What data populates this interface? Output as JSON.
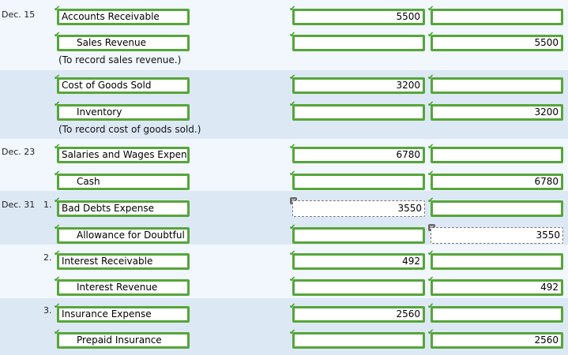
{
  "icons": {
    "check": "✔",
    "x": "✕"
  },
  "rows": {
    "r0": {
      "date": "Dec. 15",
      "account": "Accounts Receivable",
      "debit": "5500",
      "credit": ""
    },
    "r1": {
      "account": "Sales Revenue",
      "debit": "",
      "credit": "5500"
    },
    "r1_note": "(To record sales revenue.)",
    "r2": {
      "account": "Cost of Goods Sold",
      "debit": "3200",
      "credit": ""
    },
    "r3": {
      "account": "Inventory",
      "debit": "",
      "credit": "3200"
    },
    "r3_note": "(To record cost of goods sold.)",
    "r4": {
      "date": "Dec. 23",
      "account": "Salaries and Wages Expen",
      "debit": "6780",
      "credit": ""
    },
    "r5": {
      "account": "Cash",
      "debit": "",
      "credit": "6780"
    },
    "r6": {
      "date": "Dec. 31",
      "num": "1.",
      "account": "Bad Debts Expense",
      "debit": "3550",
      "credit": ""
    },
    "r7": {
      "account": "Allowance for Doubtful",
      "debit": "",
      "credit": "3550"
    },
    "r8": {
      "num": "2.",
      "account": "Interest Receivable",
      "debit": "492",
      "credit": ""
    },
    "r9": {
      "account": "Interest Revenue",
      "debit": "",
      "credit": "492"
    },
    "r10": {
      "num": "3.",
      "account": "Insurance Expense",
      "debit": "2560",
      "credit": ""
    },
    "r11": {
      "account": "Prepaid Insurance",
      "debit": "",
      "credit": "2560"
    }
  }
}
